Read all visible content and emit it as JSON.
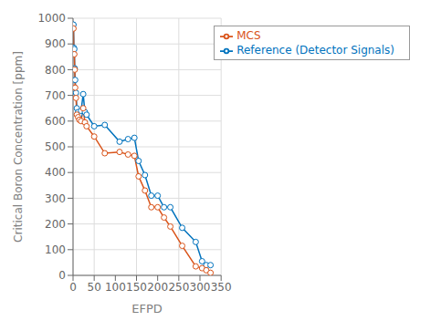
{
  "chart_data": {
    "type": "line",
    "x_label": "EFPD",
    "y_label": "Critical Boron Concentration [ppm]",
    "x": [
      0,
      1,
      2,
      3,
      4,
      5,
      7,
      9,
      12,
      15,
      19,
      24,
      28,
      32,
      50,
      75,
      110,
      130,
      145,
      155,
      170,
      185,
      200,
      215,
      230,
      258,
      290,
      305,
      315,
      325
    ],
    "series": [
      {
        "name": "Reference (Detector Signals)",
        "color": "#0072BD",
        "marker": "circle",
        "values": [
          975,
          975,
          885,
          880,
          805,
          760,
          710,
          650,
          635,
          625,
          640,
          705,
          635,
          625,
          580,
          585,
          520,
          530,
          535,
          445,
          390,
          310,
          310,
          265,
          265,
          185,
          130,
          55,
          40,
          40
        ]
      },
      {
        "name": "MCS",
        "color": "#D95319",
        "marker": "circle",
        "values": [
          960,
          960,
          860,
          860,
          800,
          730,
          690,
          625,
          615,
          605,
          600,
          650,
          595,
          580,
          540,
          475,
          480,
          470,
          465,
          385,
          330,
          265,
          265,
          225,
          190,
          115,
          35,
          28,
          20,
          10
        ]
      }
    ],
    "xlim": [
      0,
      350
    ],
    "ylim": [
      0,
      1000
    ],
    "xticks": [
      0,
      50,
      100,
      150,
      200,
      250,
      300,
      350
    ],
    "yticks": [
      0,
      100,
      200,
      300,
      400,
      500,
      600,
      700,
      800,
      900,
      1000
    ],
    "grid": true,
    "legend": "upper right"
  }
}
